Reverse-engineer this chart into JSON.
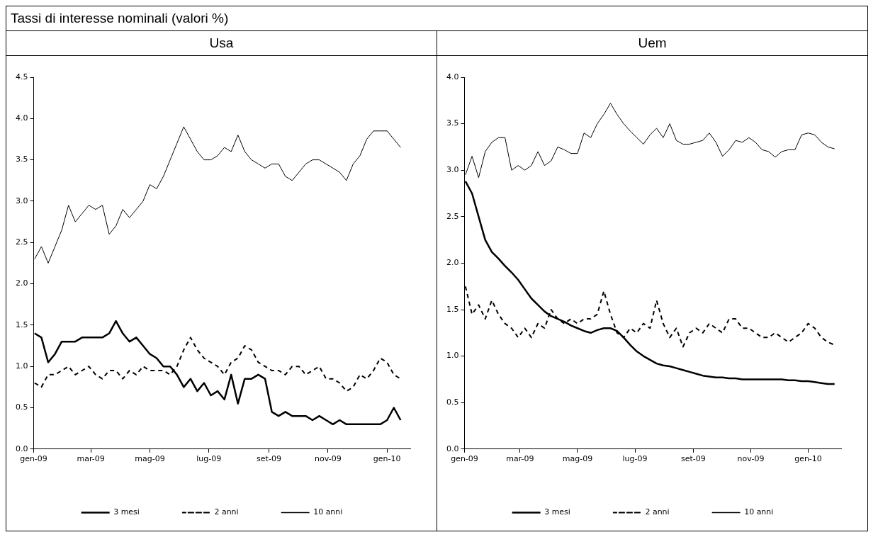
{
  "chart_data": [
    {
      "type": "line",
      "title": "Usa",
      "annotations": [
        "Tassi di interesse nominali (valori %)"
      ],
      "x": [
        "2009-01-02",
        "2009-01-09",
        "2009-01-16",
        "2009-01-23",
        "2009-01-30",
        "2009-02-06",
        "2009-02-13",
        "2009-02-20",
        "2009-02-27",
        "2009-03-06",
        "2009-03-13",
        "2009-03-20",
        "2009-03-27",
        "2009-04-03",
        "2009-04-10",
        "2009-04-17",
        "2009-04-24",
        "2009-05-01",
        "2009-05-08",
        "2009-05-15",
        "2009-05-22",
        "2009-05-29",
        "2009-06-05",
        "2009-06-12",
        "2009-06-19",
        "2009-06-26",
        "2009-07-03",
        "2009-07-10",
        "2009-07-17",
        "2009-07-24",
        "2009-07-31",
        "2009-08-07",
        "2009-08-14",
        "2009-08-21",
        "2009-08-28",
        "2009-09-04",
        "2009-09-11",
        "2009-09-18",
        "2009-09-25",
        "2009-10-02",
        "2009-10-09",
        "2009-10-16",
        "2009-10-23",
        "2009-10-30",
        "2009-11-06",
        "2009-11-13",
        "2009-11-20",
        "2009-11-27",
        "2009-12-04",
        "2009-12-11",
        "2009-12-18",
        "2009-12-25",
        "2010-01-01",
        "2010-01-08",
        "2010-01-15"
      ],
      "xlim": [
        "2009-01-01",
        "2010-01-25"
      ],
      "xticks": [
        {
          "value": "2009-01-01",
          "label": "gen-09"
        },
        {
          "value": "2009-03-01",
          "label": "mar-09"
        },
        {
          "value": "2009-05-01",
          "label": "mag-09"
        },
        {
          "value": "2009-07-01",
          "label": "lug-09"
        },
        {
          "value": "2009-09-01",
          "label": "set-09"
        },
        {
          "value": "2009-11-01",
          "label": "nov-09"
        },
        {
          "value": "2010-01-01",
          "label": "gen-10"
        }
      ],
      "ylim": [
        0,
        4.5
      ],
      "yticks": [
        {
          "value": 0,
          "label": "0.0"
        },
        {
          "value": 0.5,
          "label": "0.5"
        },
        {
          "value": 1,
          "label": "1.0"
        },
        {
          "value": 1.5,
          "label": "1.5"
        },
        {
          "value": 2,
          "label": "2.0"
        },
        {
          "value": 2.5,
          "label": "2.5"
        },
        {
          "value": 3,
          "label": "3.0"
        },
        {
          "value": 3.5,
          "label": "3.5"
        },
        {
          "value": 4,
          "label": "4.0"
        },
        {
          "value": 4.5,
          "label": "4.5"
        }
      ],
      "grid": false,
      "legend": "bottom",
      "series": [
        {
          "name": "3 mesi",
          "color": "#000000",
          "line_style": "solid",
          "values": [
            1.4,
            1.35,
            1.05,
            1.15,
            1.3,
            1.3,
            1.3,
            1.35,
            1.35,
            1.35,
            1.35,
            1.4,
            1.55,
            1.4,
            1.3,
            1.35,
            1.25,
            1.15,
            1.1,
            1.0,
            1.0,
            0.9,
            0.75,
            0.85,
            0.7,
            0.8,
            0.65,
            0.7,
            0.6,
            0.9,
            0.55,
            0.85,
            0.85,
            0.9,
            0.85,
            0.45,
            0.4,
            0.45,
            0.4,
            0.4,
            0.4,
            0.35,
            0.4,
            0.35,
            0.3,
            0.35,
            0.3,
            0.3,
            0.3,
            0.3,
            0.3,
            0.3,
            0.35,
            0.5,
            0.35
          ]
        },
        {
          "name": "2 anni",
          "color": "#000000",
          "line_style": "dashed",
          "values": [
            0.8,
            0.75,
            0.9,
            0.9,
            0.95,
            1.0,
            0.9,
            0.95,
            1.0,
            0.9,
            0.85,
            0.95,
            0.95,
            0.85,
            0.95,
            0.9,
            1.0,
            0.95,
            0.95,
            0.95,
            0.9,
            1.0,
            1.2,
            1.35,
            1.2,
            1.1,
            1.05,
            1.0,
            0.9,
            1.05,
            1.1,
            1.25,
            1.2,
            1.05,
            1.0,
            0.95,
            0.95,
            0.9,
            1.0,
            1.0,
            0.9,
            0.95,
            1.0,
            0.85,
            0.85,
            0.8,
            0.7,
            0.75,
            0.9,
            0.85,
            0.95,
            1.1,
            1.05,
            0.9,
            0.85
          ]
        },
        {
          "name": "10 anni",
          "color": "#000000",
          "line_style": "solid",
          "values": [
            2.3,
            2.45,
            2.25,
            2.45,
            2.65,
            2.95,
            2.75,
            2.85,
            2.95,
            2.9,
            2.95,
            2.6,
            2.7,
            2.9,
            2.8,
            2.9,
            3.0,
            3.2,
            3.15,
            3.3,
            3.5,
            3.7,
            3.9,
            3.75,
            3.6,
            3.5,
            3.5,
            3.55,
            3.65,
            3.6,
            3.8,
            3.6,
            3.5,
            3.45,
            3.4,
            3.45,
            3.45,
            3.3,
            3.25,
            3.35,
            3.45,
            3.5,
            3.5,
            3.45,
            3.4,
            3.35,
            3.25,
            3.45,
            3.55,
            3.75,
            3.85,
            3.85,
            3.85,
            3.75,
            3.65
          ]
        }
      ]
    },
    {
      "type": "line",
      "title": "Uem",
      "x": [
        "2009-01-02",
        "2009-01-09",
        "2009-01-16",
        "2009-01-23",
        "2009-01-30",
        "2009-02-06",
        "2009-02-13",
        "2009-02-20",
        "2009-02-27",
        "2009-03-06",
        "2009-03-13",
        "2009-03-20",
        "2009-03-27",
        "2009-04-03",
        "2009-04-10",
        "2009-04-17",
        "2009-04-24",
        "2009-05-01",
        "2009-05-08",
        "2009-05-15",
        "2009-05-22",
        "2009-05-29",
        "2009-06-05",
        "2009-06-12",
        "2009-06-19",
        "2009-06-26",
        "2009-07-03",
        "2009-07-10",
        "2009-07-17",
        "2009-07-24",
        "2009-07-31",
        "2009-08-07",
        "2009-08-14",
        "2009-08-21",
        "2009-08-28",
        "2009-09-04",
        "2009-09-11",
        "2009-09-18",
        "2009-09-25",
        "2009-10-02",
        "2009-10-09",
        "2009-10-16",
        "2009-10-23",
        "2009-10-30",
        "2009-11-06",
        "2009-11-13",
        "2009-11-20",
        "2009-11-27",
        "2009-12-04",
        "2009-12-11",
        "2009-12-18",
        "2009-12-25",
        "2010-01-01",
        "2010-01-08",
        "2010-01-15",
        "2010-01-22",
        "2010-01-29"
      ],
      "xlim": [
        "2009-01-01",
        "2010-02-05"
      ],
      "xticks": [
        {
          "value": "2009-01-01",
          "label": "gen-09"
        },
        {
          "value": "2009-03-01",
          "label": "mar-09"
        },
        {
          "value": "2009-05-01",
          "label": "mag-09"
        },
        {
          "value": "2009-07-01",
          "label": "lug-09"
        },
        {
          "value": "2009-09-01",
          "label": "set-09"
        },
        {
          "value": "2009-11-01",
          "label": "nov-09"
        },
        {
          "value": "2010-01-01",
          "label": "gen-10"
        }
      ],
      "ylim": [
        0,
        4
      ],
      "yticks": [
        {
          "value": 0,
          "label": "0.0"
        },
        {
          "value": 0.5,
          "label": "0.5"
        },
        {
          "value": 1,
          "label": "1.0"
        },
        {
          "value": 1.5,
          "label": "1.5"
        },
        {
          "value": 2,
          "label": "2.0"
        },
        {
          "value": 2.5,
          "label": "2.5"
        },
        {
          "value": 3,
          "label": "3.0"
        },
        {
          "value": 3.5,
          "label": "3.5"
        },
        {
          "value": 4,
          "label": "4.0"
        }
      ],
      "grid": false,
      "legend": "bottom",
      "series": [
        {
          "name": "3 mesi",
          "color": "#000000",
          "line_style": "solid",
          "values": [
            2.88,
            2.75,
            2.5,
            2.25,
            2.12,
            2.05,
            1.97,
            1.9,
            1.82,
            1.72,
            1.62,
            1.55,
            1.48,
            1.43,
            1.4,
            1.37,
            1.33,
            1.3,
            1.27,
            1.25,
            1.28,
            1.3,
            1.3,
            1.27,
            1.2,
            1.12,
            1.05,
            1.0,
            0.96,
            0.92,
            0.9,
            0.89,
            0.87,
            0.85,
            0.83,
            0.81,
            0.79,
            0.78,
            0.77,
            0.77,
            0.76,
            0.76,
            0.75,
            0.75,
            0.75,
            0.75,
            0.75,
            0.75,
            0.75,
            0.74,
            0.74,
            0.73,
            0.73,
            0.72,
            0.71,
            0.7,
            0.7
          ]
        },
        {
          "name": "2 anni",
          "color": "#000000",
          "line_style": "dashed",
          "values": [
            1.75,
            1.45,
            1.55,
            1.4,
            1.6,
            1.45,
            1.35,
            1.3,
            1.2,
            1.3,
            1.2,
            1.35,
            1.3,
            1.5,
            1.4,
            1.35,
            1.4,
            1.35,
            1.4,
            1.4,
            1.45,
            1.7,
            1.45,
            1.25,
            1.2,
            1.3,
            1.25,
            1.35,
            1.3,
            1.6,
            1.35,
            1.2,
            1.3,
            1.1,
            1.25,
            1.3,
            1.25,
            1.35,
            1.3,
            1.25,
            1.4,
            1.4,
            1.3,
            1.3,
            1.25,
            1.2,
            1.2,
            1.25,
            1.2,
            1.15,
            1.2,
            1.25,
            1.35,
            1.3,
            1.2,
            1.15,
            1.12
          ]
        },
        {
          "name": "10 anni",
          "color": "#000000",
          "line_style": "solid",
          "values": [
            2.95,
            3.15,
            2.92,
            3.2,
            3.3,
            3.35,
            3.35,
            3.0,
            3.05,
            3.0,
            3.05,
            3.2,
            3.05,
            3.1,
            3.25,
            3.22,
            3.18,
            3.18,
            3.4,
            3.35,
            3.5,
            3.6,
            3.72,
            3.6,
            3.5,
            3.42,
            3.35,
            3.28,
            3.38,
            3.45,
            3.35,
            3.5,
            3.32,
            3.28,
            3.28,
            3.3,
            3.32,
            3.4,
            3.3,
            3.15,
            3.22,
            3.32,
            3.3,
            3.35,
            3.3,
            3.22,
            3.2,
            3.14,
            3.2,
            3.22,
            3.22,
            3.38,
            3.4,
            3.38,
            3.3,
            3.25,
            3.23
          ]
        }
      ]
    }
  ]
}
